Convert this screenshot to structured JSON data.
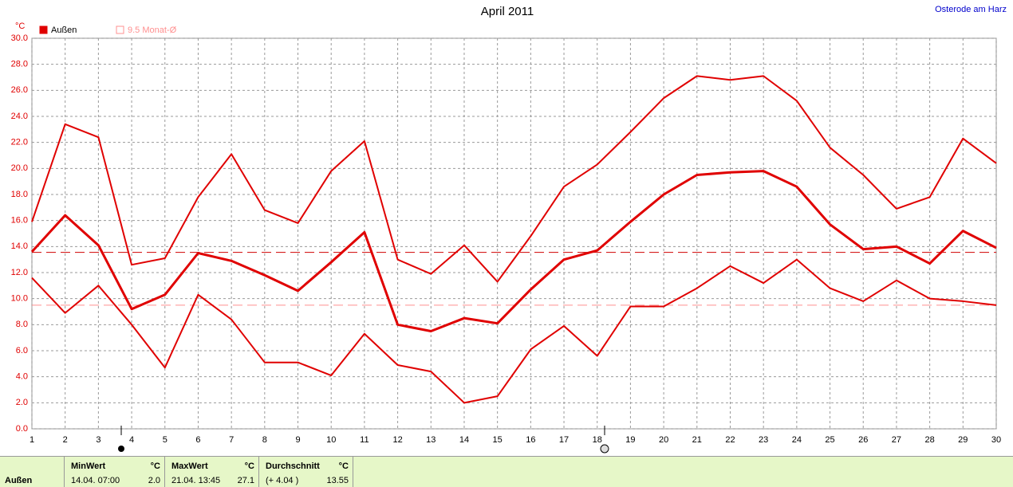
{
  "chart_data": {
    "type": "line",
    "title": "April 2011",
    "location": "Osterode am Harz",
    "y_unit": "°C",
    "x": [
      1,
      2,
      3,
      4,
      5,
      6,
      7,
      8,
      9,
      10,
      11,
      12,
      13,
      14,
      15,
      16,
      17,
      18,
      19,
      20,
      21,
      22,
      23,
      24,
      25,
      26,
      27,
      28,
      29,
      30
    ],
    "series": [
      {
        "color": "#e00000",
        "width": 2,
        "values": [
          15.9,
          23.4,
          22.4,
          12.6,
          13.1,
          17.8,
          21.1,
          16.8,
          15.8,
          19.8,
          22.1,
          13.0,
          11.9,
          14.1,
          11.3,
          14.8,
          18.6,
          20.3,
          22.8,
          25.4,
          27.1,
          26.8,
          27.1,
          25.2,
          21.6,
          19.5,
          16.9,
          17.8,
          22.3,
          20.4
        ]
      },
      {
        "color": "#e00000",
        "width": 3,
        "values": [
          13.6,
          16.4,
          14.1,
          9.2,
          10.3,
          13.5,
          12.9,
          11.8,
          10.6,
          12.8,
          15.1,
          8.0,
          7.5,
          8.5,
          8.1,
          10.7,
          13.0,
          13.7,
          15.9,
          18.0,
          19.5,
          19.7,
          19.8,
          18.6,
          15.7,
          13.8,
          14.0,
          12.7,
          15.2,
          13.9
        ]
      },
      {
        "color": "#e00000",
        "width": 2,
        "values": [
          11.6,
          8.9,
          11.0,
          8.0,
          4.7,
          10.3,
          8.4,
          5.1,
          5.1,
          4.1,
          7.3,
          4.9,
          4.4,
          2.0,
          2.5,
          6.1,
          7.9,
          5.6,
          9.4,
          9.4,
          10.8,
          12.5,
          11.2,
          13.0,
          10.8,
          9.8,
          11.4,
          10.0,
          9.8,
          9.5
        ]
      }
    ],
    "reference_lines": [
      {
        "value": 13.55,
        "color": "#d00000"
      },
      {
        "value": 9.5,
        "color": "#ff9090"
      }
    ],
    "legend": [
      {
        "label": "Außen",
        "color": "#e00000",
        "filled": true
      },
      {
        "label": "9.5 Monat-Ø",
        "color": "#ff9090",
        "filled": false
      }
    ],
    "xlim": [
      1,
      30
    ],
    "xticks": [
      1,
      2,
      3,
      4,
      5,
      6,
      7,
      8,
      9,
      10,
      11,
      12,
      13,
      14,
      15,
      16,
      17,
      18,
      19,
      20,
      21,
      22,
      23,
      24,
      25,
      26,
      27,
      28,
      29,
      30
    ],
    "ylim": [
      0,
      30
    ],
    "yticks": [
      {
        "value": 0,
        "label": "0.0"
      },
      {
        "value": 2,
        "label": "2.0"
      },
      {
        "value": 4,
        "label": "4.0"
      },
      {
        "value": 6,
        "label": "6.0"
      },
      {
        "value": 8,
        "label": "8.0"
      },
      {
        "value": 10,
        "label": "10.0"
      },
      {
        "value": 12,
        "label": "12.0"
      },
      {
        "value": 14,
        "label": "14.0"
      },
      {
        "value": 16,
        "label": "16.0"
      },
      {
        "value": 18,
        "label": "18.0"
      },
      {
        "value": 20,
        "label": "20.0"
      },
      {
        "value": 22,
        "label": "22.0"
      },
      {
        "value": 24,
        "label": "24.0"
      },
      {
        "value": 26,
        "label": "26.0"
      },
      {
        "value": 28,
        "label": "28.0"
      },
      {
        "value": 30,
        "label": "30.0"
      }
    ],
    "grid": true
  },
  "stats": {
    "row_label": "Außen",
    "columns": [
      {
        "header": "MinWert",
        "unit": "°C",
        "when": "14.04.  07:00",
        "value": "2.0"
      },
      {
        "header": "MaxWert",
        "unit": "°C",
        "when": "21.04.  13:45",
        "value": "27.1"
      },
      {
        "header": "Durchschnitt",
        "unit": "°C",
        "when": "(+ 4.04 )",
        "value": "13.55"
      }
    ]
  }
}
